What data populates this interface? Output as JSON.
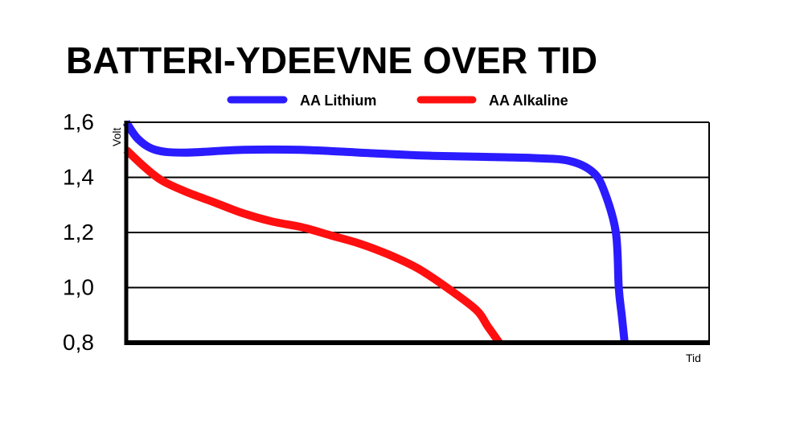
{
  "chart_data": {
    "type": "line",
    "title": "BATTERI-YDEEVNE OVER TID",
    "ylabel": "Volt",
    "xlabel": "Tid",
    "y_ticks": [
      "1,6",
      "1,4",
      "1,2",
      "1,0",
      "0,8"
    ],
    "y_tick_values": [
      1.6,
      1.4,
      1.2,
      1.0,
      0.8
    ],
    "ylim": [
      0.8,
      1.6
    ],
    "xlim": [
      0,
      1
    ],
    "grid": "horizontal",
    "legend_position": "top",
    "series": [
      {
        "name": "AA Lithium",
        "color": "#2b1bff",
        "x": [
          0.0,
          0.02,
          0.05,
          0.1,
          0.2,
          0.3,
          0.4,
          0.5,
          0.6,
          0.7,
          0.76,
          0.8,
          0.82,
          0.84,
          0.845,
          0.85,
          0.855
        ],
        "y": [
          1.6,
          1.54,
          1.5,
          1.49,
          1.5,
          1.5,
          1.49,
          1.48,
          1.475,
          1.47,
          1.46,
          1.42,
          1.35,
          1.2,
          1.0,
          0.9,
          0.8
        ]
      },
      {
        "name": "AA Alkaline",
        "color": "#ff0f0f",
        "x": [
          0.0,
          0.03,
          0.06,
          0.1,
          0.15,
          0.2,
          0.25,
          0.3,
          0.35,
          0.4,
          0.45,
          0.5,
          0.55,
          0.6,
          0.62,
          0.64
        ],
        "y": [
          1.5,
          1.44,
          1.39,
          1.35,
          1.31,
          1.27,
          1.24,
          1.22,
          1.19,
          1.16,
          1.12,
          1.07,
          1.0,
          0.92,
          0.86,
          0.8
        ]
      }
    ]
  }
}
